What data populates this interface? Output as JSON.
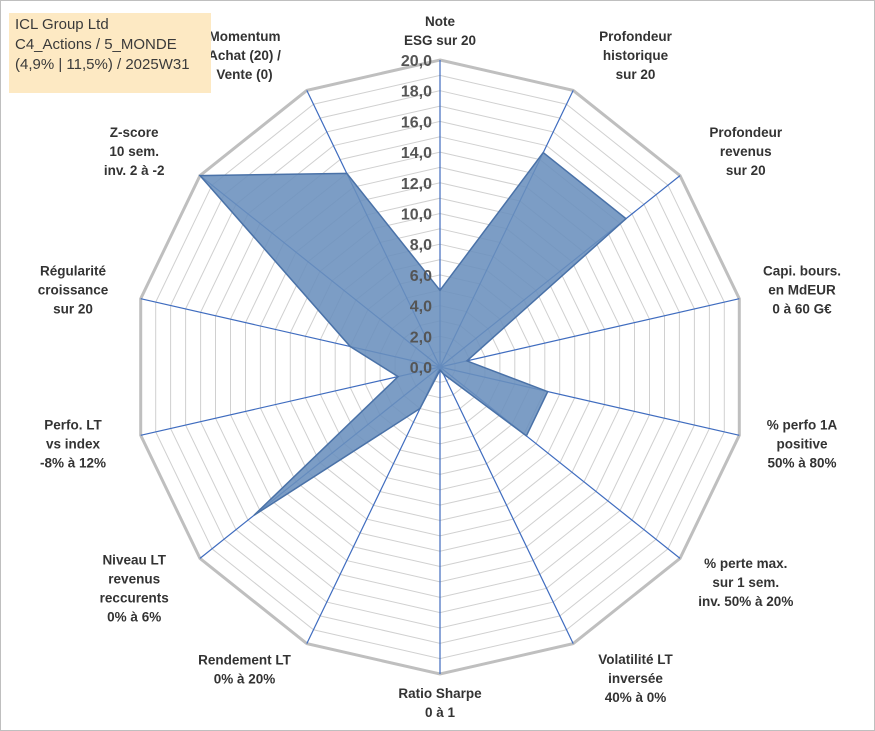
{
  "title_box": {
    "line1": "ICL Group Ltd",
    "line2": "C4_Actions / 5_MONDE",
    "line3": "(4,9% | 11,5%) / 2025W31"
  },
  "chart_data": {
    "type": "radar",
    "title": "ICL Group Ltd",
    "subtitle": "C4_Actions / 5_MONDE (4,9% | 11,5%) / 2025W31",
    "rlim": [
      0,
      20
    ],
    "tick_values": [
      0,
      2,
      4,
      6,
      8,
      10,
      12,
      14,
      16,
      18,
      20
    ],
    "tick_labels": [
      "0,0",
      "2,0",
      "4,0",
      "6,0",
      "8,0",
      "10,0",
      "12,0",
      "14,0",
      "16,0",
      "18,0",
      "20,0"
    ],
    "axes": [
      {
        "label": [
          "Note",
          "ESG sur 20"
        ],
        "value": 5.0
      },
      {
        "label": [
          "Profondeur",
          "historique",
          "sur 20"
        ],
        "value": 15.5
      },
      {
        "label": [
          "Profondeur",
          "revenus",
          "sur 20"
        ],
        "value": 15.5
      },
      {
        "label": [
          "Capi. bours.",
          "en MdEUR",
          "0 à 60 G€"
        ],
        "value": 1.8
      },
      {
        "label": [
          "% perfo 1A",
          "positive",
          "50% à 80%"
        ],
        "value": 7.2
      },
      {
        "label": [
          "% perte max.",
          "sur 1 sem.",
          "inv. 50% à 20%"
        ],
        "value": 7.2
      },
      {
        "label": [
          "Volatilité LT",
          "inversée",
          "40% à 0%"
        ],
        "value": 0.5
      },
      {
        "label": [
          "Ratio Sharpe",
          "0 à 1"
        ],
        "value": 0.2
      },
      {
        "label": [
          "Rendement LT",
          "0% à 20%"
        ],
        "value": 3.0
      },
      {
        "label": [
          "Niveau LT",
          "revenus",
          "reccurents",
          "0% à 6%"
        ],
        "value": 15.5
      },
      {
        "label": [
          "Perfo. LT",
          "vs index",
          "-8% à 12%"
        ],
        "value": 2.8
      },
      {
        "label": [
          "Régularité",
          "croissance",
          "sur 20"
        ],
        "value": 6.0
      },
      {
        "label": [
          "Z-score",
          "10 sem.",
          "inv. 2 à -2"
        ],
        "value": 20.0
      },
      {
        "label": [
          "Momentum",
          "Achat (20) /",
          "Vente (0)"
        ],
        "value": 14.0
      }
    ],
    "series": [
      {
        "fill": "#6a8fbd",
        "stroke": "#4a72a8"
      }
    ],
    "grid": true,
    "legend": "none",
    "colors": {
      "grid": "#d0d0d0",
      "outer_ring": "#bfbfbf",
      "spokes": "#3f6cbf"
    }
  }
}
